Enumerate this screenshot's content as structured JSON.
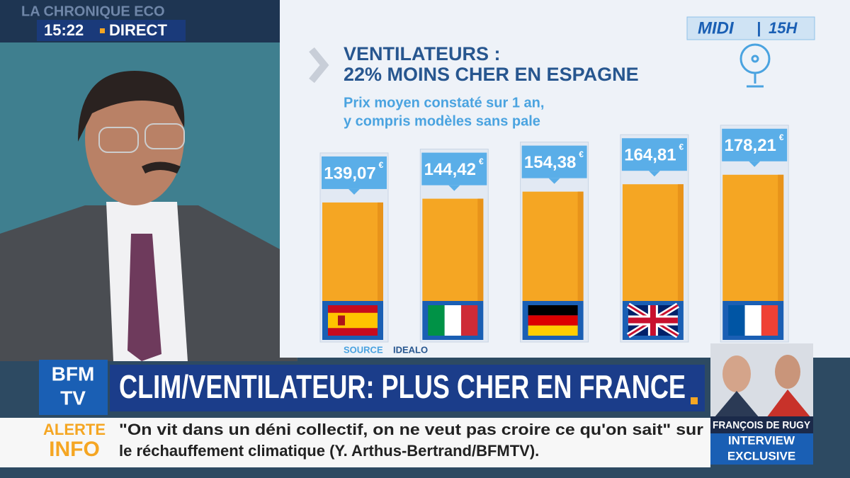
{
  "header": {
    "show": "LA CHRONIQUE ECO",
    "time": "15:22",
    "live": "DIRECT",
    "program": "MIDI",
    "program_hour": "15H"
  },
  "chart_data": {
    "type": "bar",
    "title": [
      "VENTILATEURS :",
      "22% MOINS CHER EN ESPAGNE"
    ],
    "subtitle": [
      "Prix moyen constaté sur 1 an,",
      "y compris modèles sans pale"
    ],
    "categories": [
      null,
      null,
      null,
      null,
      null
    ],
    "values": [
      139.07,
      144.42,
      154.38,
      164.81,
      178.21
    ],
    "value_labels": [
      "139,07",
      "144,42",
      "154,38",
      "164,81",
      "178,21"
    ],
    "unit": "€",
    "color": "#f5a623",
    "source": [
      "SOURCE",
      "IDEALO"
    ]
  },
  "banner": {
    "logo": [
      "BFM",
      "TV"
    ],
    "headline": "CLIM/VENTILATEUR: PLUS CHER EN FRANCE"
  },
  "ticker": {
    "label": [
      "ALERTE",
      "INFO"
    ],
    "lines": [
      "\"On vit dans un déni collectif, on ne veut pas croire ce qu'on sait\" sur",
      "le réchauffement climatique (Y. Arthus-Bertrand/BFMTV)."
    ]
  },
  "inset": {
    "name": "FRANÇOIS DE RUGY",
    "tag": [
      "INTERVIEW",
      "EXCLUSIVE"
    ]
  }
}
